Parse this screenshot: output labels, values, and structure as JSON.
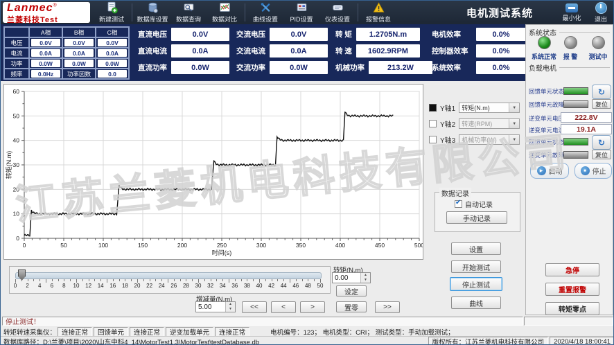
{
  "window": {
    "brand": "Lanmec",
    "brand_reg": "®",
    "brand_sub_cn": "兰菱科技",
    "brand_sub_en": "Test",
    "title": "电机测试系统",
    "minimize": "最小化",
    "exit": "退出"
  },
  "toolbar": {
    "items": [
      {
        "label": "新建测试"
      },
      {
        "label": "数据库设置"
      },
      {
        "label": "数据查询"
      },
      {
        "label": "数据对比"
      },
      {
        "label": "曲线设置"
      },
      {
        "label": "PID设置"
      },
      {
        "label": "仪表设置"
      },
      {
        "label": "报警信息"
      }
    ]
  },
  "phase_table": {
    "col_headers": [
      "A相",
      "B相",
      "C相"
    ],
    "rows": [
      {
        "label": "电压",
        "values": [
          "0.0V",
          "0.0V",
          "0.0V"
        ]
      },
      {
        "label": "电流",
        "values": [
          "0.0A",
          "0.0A",
          "0.0A"
        ]
      },
      {
        "label": "功率",
        "values": [
          "0.0W",
          "0.0W",
          "0.0W"
        ]
      }
    ],
    "freq_label": "频率",
    "freq_value": "0.0Hz",
    "pf_label": "功率因数",
    "pf_value": "0.0"
  },
  "measurements": {
    "groups": [
      {
        "rows": [
          {
            "label": "直流电压",
            "value": "0.0V"
          },
          {
            "label": "直流电流",
            "value": "0.0A"
          },
          {
            "label": "直流功率",
            "value": "0.0W"
          }
        ]
      },
      {
        "rows": [
          {
            "label": "交流电压",
            "value": "0.0V"
          },
          {
            "label": "交流电流",
            "value": "0.0A"
          },
          {
            "label": "交流功率",
            "value": "0.0W"
          }
        ]
      },
      {
        "rows": [
          {
            "label": "转  矩",
            "value": "1.2705N.m"
          },
          {
            "label": "转  速",
            "value": "1602.9RPM"
          },
          {
            "label": "机械功率",
            "value": "213.2W"
          }
        ]
      },
      {
        "rows": [
          {
            "label": "电机效率",
            "value": "0.0%"
          },
          {
            "label": "控制器效率",
            "value": "0.0%"
          },
          {
            "label": "系统效率",
            "value": "0.0%"
          }
        ]
      }
    ]
  },
  "watermark": "江苏兰菱机电科技有限公司",
  "chart_data": {
    "type": "line",
    "xlabel": "时间(s)",
    "ylabel": "转矩(N.m)",
    "xlim": [
      0,
      500
    ],
    "ylim": [
      0,
      60
    ],
    "xticks": [
      0,
      50,
      100,
      150,
      200,
      250,
      300,
      350,
      400,
      450,
      500
    ],
    "yticks": [
      0,
      10,
      20,
      30,
      40,
      50,
      60
    ],
    "grid": true,
    "series": [
      {
        "name": "转矩",
        "color": "#111111",
        "ripple": 0.3,
        "overshoot": 1.6,
        "steps": [
          {
            "t0": 0,
            "t1": 7,
            "level": 1.2
          },
          {
            "t0": 9,
            "t1": 117,
            "level": 10
          },
          {
            "t0": 120,
            "t1": 237,
            "level": 20
          },
          {
            "t0": 240,
            "t1": 318,
            "level": 30
          },
          {
            "t0": 320,
            "t1": 404,
            "level": 40
          },
          {
            "t0": 406,
            "t1": 467,
            "level": 50
          }
        ]
      }
    ]
  },
  "axis_panel": {
    "y1_label": "Y轴1",
    "y1_value": "转矩(N.m)",
    "y2_label": "Y轴2",
    "y2_value": "转速(RPM)",
    "y3_label": "Y轴3",
    "y3_value": "机械功率(W)"
  },
  "data_record": {
    "title": "数据记录",
    "auto_record": "自动记录",
    "manual_record": "手动记录"
  },
  "test_buttons": {
    "settings": "设置",
    "start": "开始测试",
    "stop": "停止测试",
    "curve": "曲线"
  },
  "load_control": {
    "tick_labels": [
      "0",
      "2",
      "4",
      "6",
      "8",
      "10",
      "12",
      "14",
      "16",
      "18",
      "20",
      "22",
      "24",
      "26",
      "28",
      "30",
      "32",
      "34",
      "36",
      "38",
      "40",
      "42",
      "44",
      "46",
      "48",
      "50"
    ],
    "torque_label": "转矩(N.m)",
    "torque_value": "0.00",
    "set": "设定",
    "zero": "置零",
    "step_label": "增减量(N.m)",
    "step_value": "5.00",
    "rew": "<<",
    "prev": "<",
    "next": ">",
    "ffwd": ">>"
  },
  "message": "停止测试！",
  "status_bar": {
    "collector_label": "转矩转速采集仪：",
    "seg1": "连接正常",
    "seg2": "回馈单元",
    "seg3": "连接正常",
    "seg4": "逆变加载单元",
    "seg5": "连接正常",
    "motor_info": "电机编号：123；  电机类型：CRI；  测试类型：手动加载测试；",
    "db_path_label": "数据库路径：",
    "db_path": "D:\\兰菱\\项目\\2020\\山东中科4_14\\MotorTest1.3\\MotorTest\\testDatabase.db",
    "copyright": "版权所有：江苏兰菱机电科技有限公司",
    "datetime": "2020/4/18 18:00:41"
  },
  "right_panel": {
    "system_status": {
      "title": "系统状态",
      "leds": [
        {
          "label": "系统正常",
          "state": "green"
        },
        {
          "label": "报 警",
          "state": "gray"
        },
        {
          "label": "测试中",
          "state": "gray"
        }
      ]
    },
    "load_motor": {
      "title": "负载电机",
      "row1_label": "回馈单元状态",
      "row2_label": "回馈单元故障",
      "reset1": "复位",
      "volt_label": "逆变单元电压",
      "volt_value": "222.8V",
      "curr_label": "逆变单元电流",
      "curr_value": "19.1A",
      "row5_label": "回馈单元状态",
      "row6_label": "逆变单元故障",
      "reset2": "复位",
      "start": "启动",
      "stop": "停止"
    },
    "emergency": "急停",
    "reset_alarm": "重置报警",
    "torque_zero": "转矩零点"
  }
}
